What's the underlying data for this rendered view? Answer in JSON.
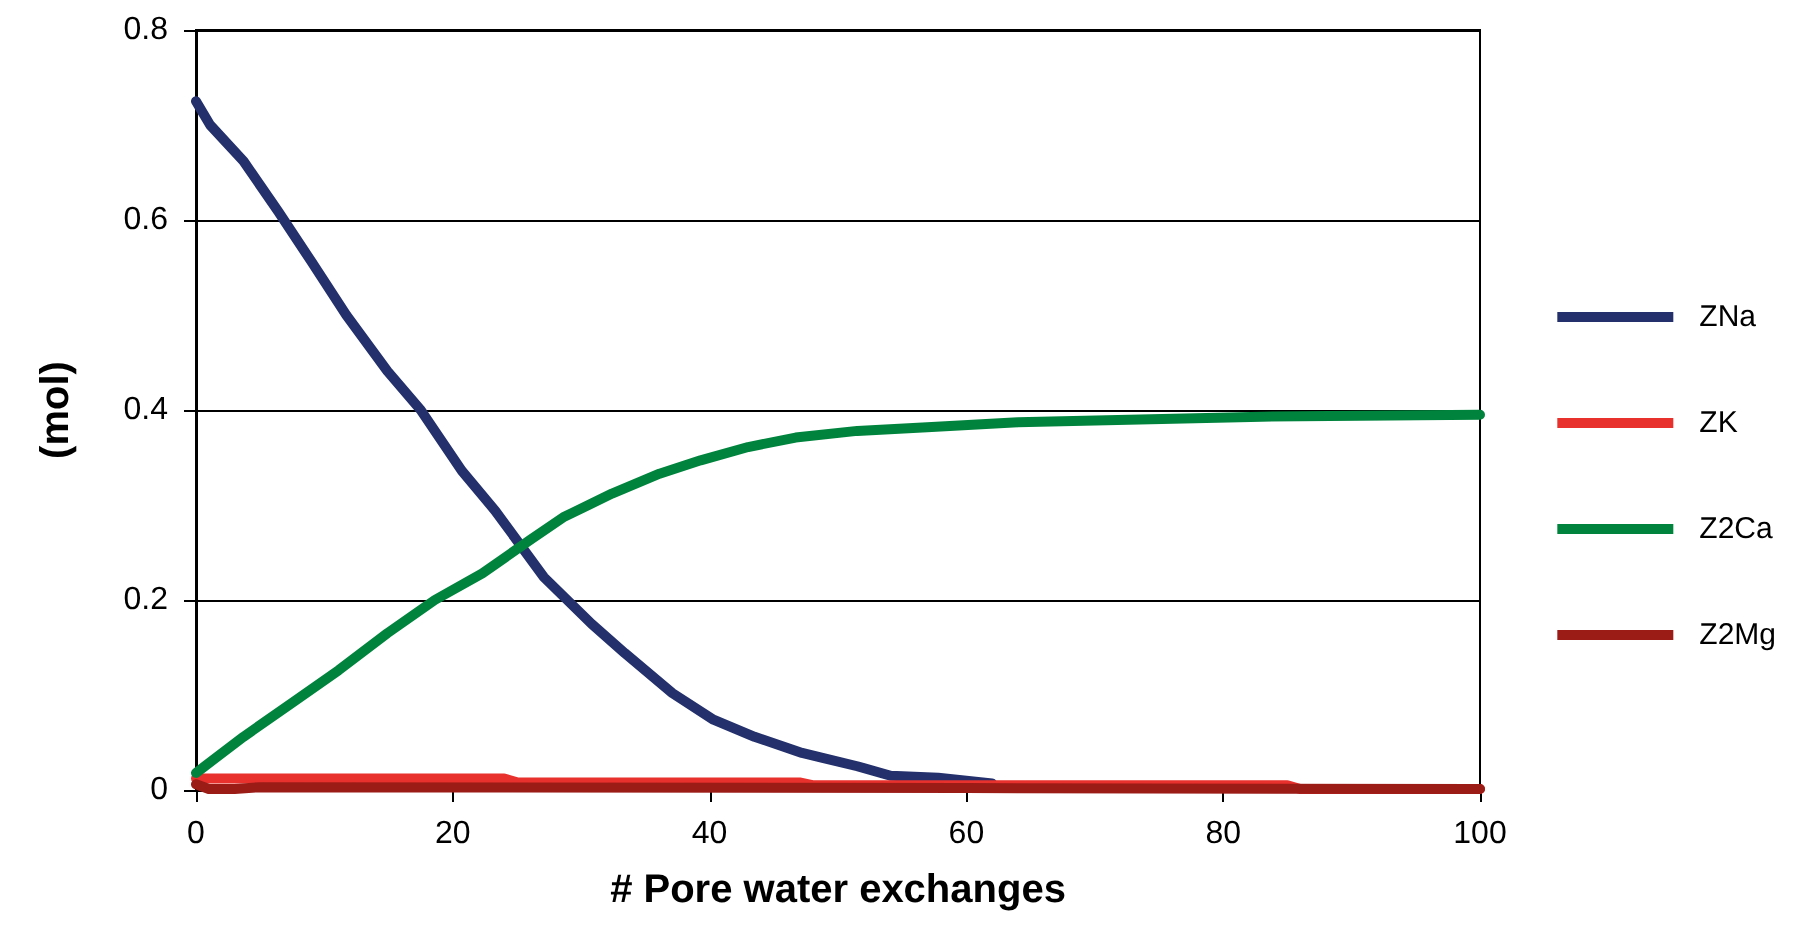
{
  "chart_data": {
    "type": "line",
    "xlabel": "# Pore water exchanges",
    "ylabel": "(mol)",
    "xlim": [
      0,
      100
    ],
    "xticks": [
      0,
      20,
      40,
      60,
      80,
      100
    ],
    "ylim": [
      0,
      0.8
    ],
    "yticks": [
      0,
      0.2,
      0.4,
      0.6,
      0.8
    ],
    "grid": "y",
    "legend": "right",
    "marker": "none",
    "line_style": "solid",
    "series": [
      {
        "name": "ZNa",
        "color": "#23306b",
        "x": [
          0,
          1.1,
          3.7,
          6.4,
          9,
          11.7,
          14.9,
          17.5,
          20.7,
          23.3,
          27.1,
          30.8,
          33.4,
          37.1,
          40.3,
          43.5,
          47.2,
          51.5,
          54.1,
          57.8,
          62
        ],
        "values": [
          0.725,
          0.7,
          0.662,
          0.609,
          0.556,
          0.5,
          0.441,
          0.4,
          0.336,
          0.294,
          0.224,
          0.175,
          0.144,
          0.102,
          0.074,
          0.056,
          0.039,
          0.025,
          0.015,
          0.013,
          0.007
        ]
      },
      {
        "name": "ZK",
        "color": "#e8302c",
        "x": [
          0,
          24,
          25,
          47,
          48,
          85,
          86,
          100
        ],
        "values": [
          0.012,
          0.012,
          0.008,
          0.008,
          0.005,
          0.005,
          0.001,
          0.001
        ]
      },
      {
        "name": "Z2Ca",
        "color": "#00843d",
        "x": [
          0,
          3.7,
          7.4,
          11.1,
          14.9,
          18.6,
          22.3,
          26,
          28.6,
          32.4,
          36.1,
          39.3,
          43,
          46.7,
          51.5,
          57.3,
          64,
          83,
          100
        ],
        "values": [
          0.018,
          0.056,
          0.091,
          0.126,
          0.165,
          0.2,
          0.228,
          0.263,
          0.287,
          0.312,
          0.333,
          0.347,
          0.361,
          0.371,
          0.378,
          0.382,
          0.387,
          0.393,
          0.395
        ]
      },
      {
        "name": "Z2Mg",
        "color": "#9b1b17",
        "x": [
          0,
          1,
          3,
          5,
          60,
          100
        ],
        "values": [
          0.006,
          0.001,
          0.001,
          0.003,
          0.002,
          0.001
        ]
      }
    ]
  }
}
